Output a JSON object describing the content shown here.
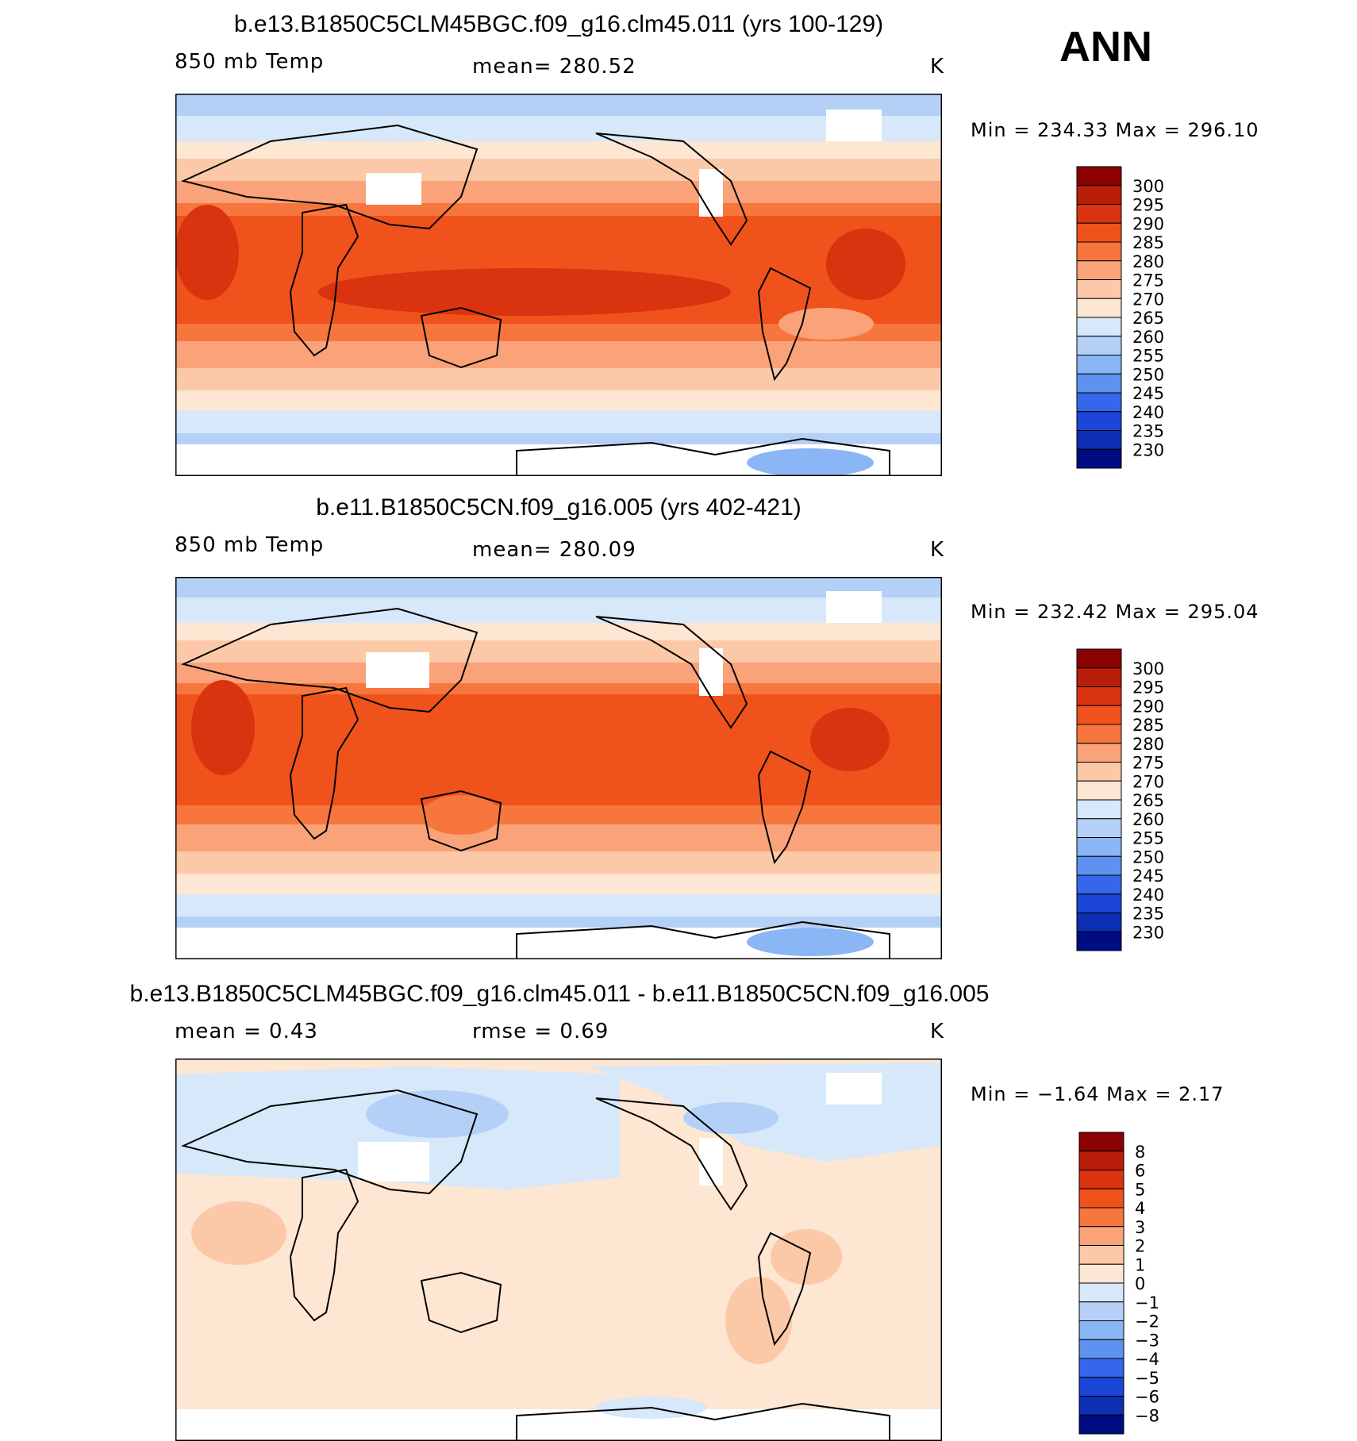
{
  "season": "ANN",
  "panels": [
    {
      "title": "b.e13.B1850C5CLM45BGC.f09_g16.clm45.011 (yrs 100-129)",
      "variable": "850 mb Temp",
      "mean_text": "mean=  280.52",
      "units": "K",
      "minmax_text": "Min  =  234.33  Max  =  296.10",
      "colorbar": {
        "labels": [
          "300",
          "295",
          "290",
          "285",
          "280",
          "275",
          "270",
          "265",
          "260",
          "255",
          "250",
          "245",
          "240",
          "235",
          "230"
        ],
        "colors": [
          "#8b0000",
          "#b81e0a",
          "#d9330f",
          "#f0521c",
          "#f7763d",
          "#faa27a",
          "#fcc9a8",
          "#fde6d2",
          "#d6e8f9",
          "#b4d0f7",
          "#8ab6f5",
          "#5e91f0",
          "#3766ea",
          "#1c46d8",
          "#0d2fb3",
          "#000c82"
        ]
      }
    },
    {
      "title": "b.e11.B1850C5CN.f09_g16.005 (yrs 402-421)",
      "variable": "850 mb Temp",
      "mean_text": "mean=  280.09",
      "units": "K",
      "minmax_text": "Min  =  232.42  Max  =  295.04",
      "colorbar": {
        "labels": [
          "300",
          "295",
          "290",
          "285",
          "280",
          "275",
          "270",
          "265",
          "260",
          "255",
          "250",
          "245",
          "240",
          "235",
          "230"
        ],
        "colors": [
          "#8b0000",
          "#b81e0a",
          "#d9330f",
          "#f0521c",
          "#f7763d",
          "#faa27a",
          "#fcc9a8",
          "#fde6d2",
          "#d6e8f9",
          "#b4d0f7",
          "#8ab6f5",
          "#5e91f0",
          "#3766ea",
          "#1c46d8",
          "#0d2fb3",
          "#000c82"
        ]
      }
    },
    {
      "title": "b.e13.B1850C5CLM45BGC.f09_g16.clm45.011 - b.e11.B1850C5CN.f09_g16.005",
      "variable": "mean  =      0.43",
      "mean_text": "rmse  =      0.69",
      "units": "K",
      "minmax_text": "Min  =     −1.64  Max  =      2.17",
      "colorbar": {
        "labels": [
          "8",
          "6",
          "5",
          "4",
          "3",
          "2",
          "1",
          "0",
          "−1",
          "−2",
          "−3",
          "−4",
          "−5",
          "−6",
          "−8"
        ],
        "colors": [
          "#8b0000",
          "#b81e0a",
          "#d9330f",
          "#f0521c",
          "#f7763d",
          "#faa27a",
          "#fcc9a8",
          "#fde6d2",
          "#d6e8f9",
          "#b4d0f7",
          "#8ab6f5",
          "#5e91f0",
          "#3766ea",
          "#1c46d8",
          "#0d2fb3",
          "#000c82"
        ]
      }
    }
  ]
}
